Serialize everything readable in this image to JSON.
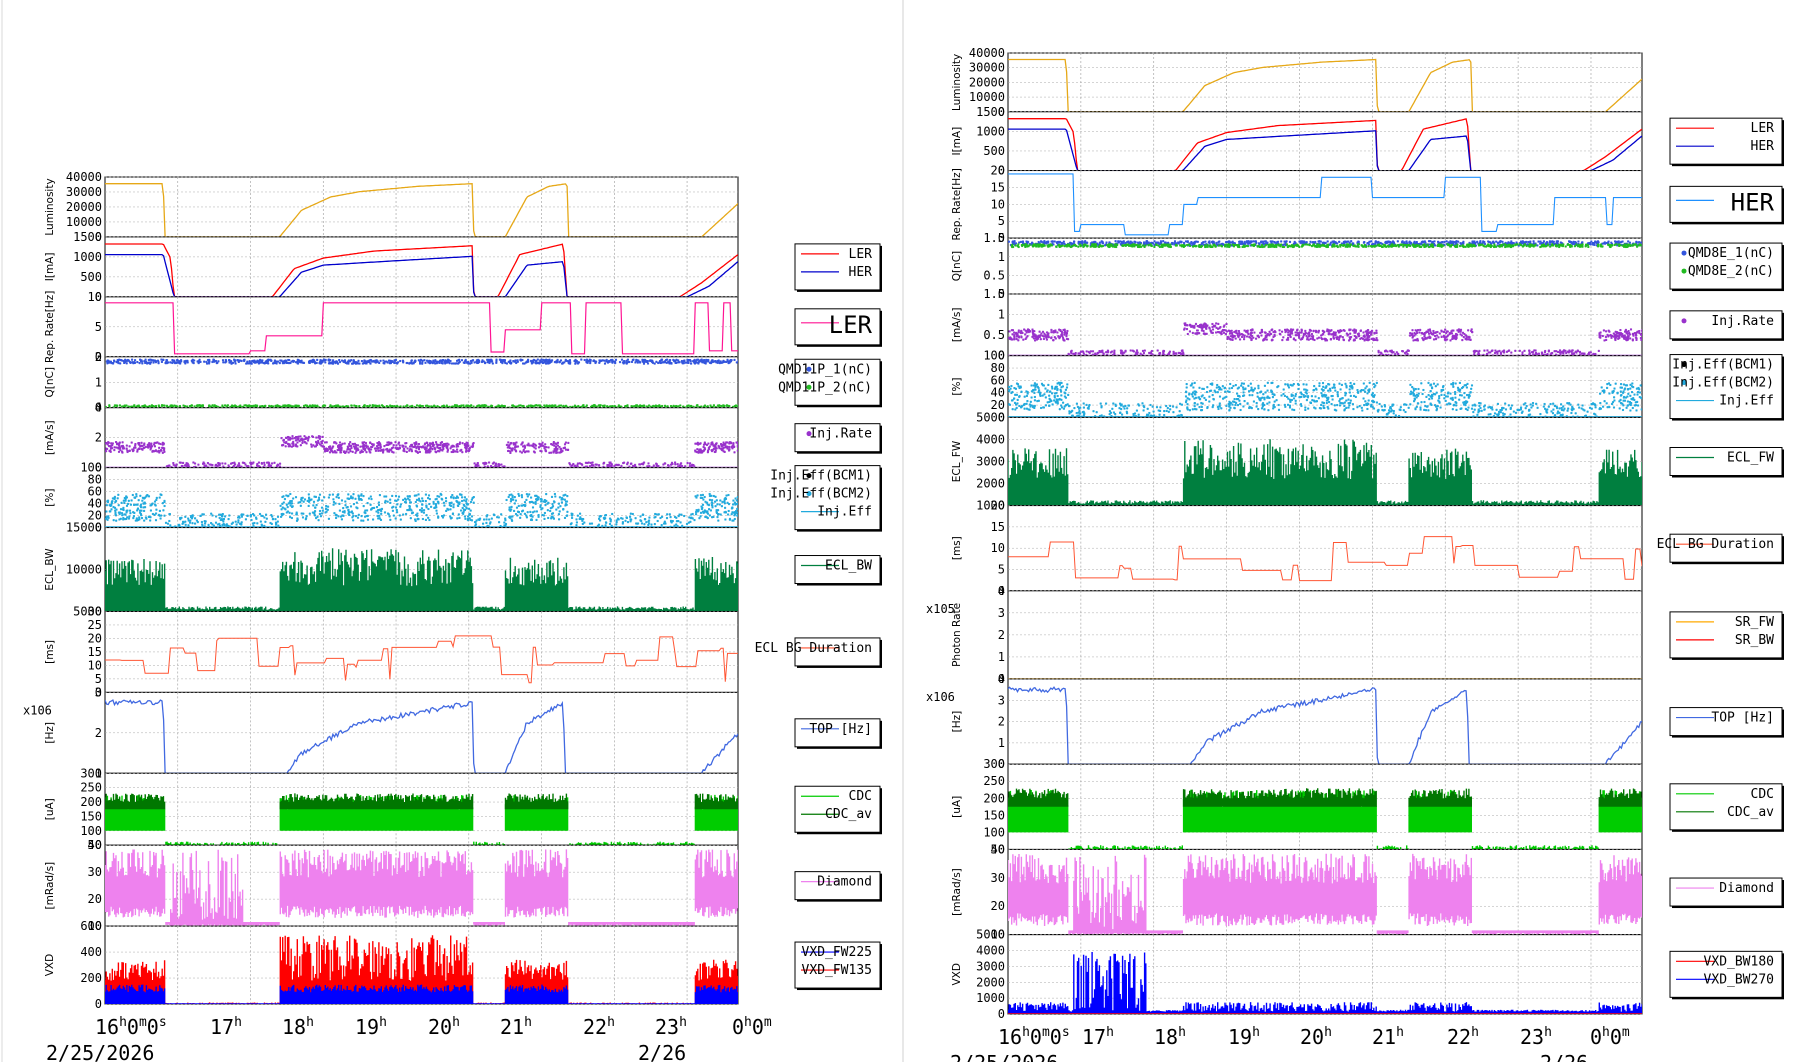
{
  "panels": [
    {
      "id": "left",
      "x_ticks": [
        "16h0m0s",
        "17h",
        "18h",
        "19h",
        "20h",
        "21h",
        "22h",
        "23h",
        "0h0m"
      ],
      "dates": [
        "2/25/2026",
        "2/26"
      ],
      "rows": [
        {
          "key": "lum",
          "ylabel": "Luminosity",
          "yticks": [
            "0",
            "10000",
            "20000",
            "30000",
            "40000"
          ],
          "legend": null
        },
        {
          "key": "cur",
          "ylabel": "I[mA]",
          "yticks": [
            "0",
            "500",
            "1000",
            "1500"
          ],
          "legend": {
            "items": [
              {
                "label": "LER",
                "color": "#ff0000",
                "kind": "line"
              },
              {
                "label": "HER",
                "color": "#0000cc",
                "kind": "line"
              }
            ]
          }
        },
        {
          "key": "rep",
          "ylabel": "Rep. Rate[Hz]",
          "yticks": [
            "0",
            "5",
            "10"
          ],
          "legend": {
            "items": [
              {
                "label": "LER",
                "color": "#ff1493",
                "kind": "line"
              }
            ],
            "large": true
          }
        },
        {
          "key": "q",
          "ylabel": "Q[nC]",
          "yticks": [
            "0",
            "1",
            "2"
          ],
          "legend": {
            "items": [
              {
                "label": "QMD11P_1(nC)",
                "color": "#3355dd",
                "kind": "dot"
              },
              {
                "label": "QMD11P_2(nC)",
                "color": "#22bb22",
                "kind": "dot"
              }
            ]
          }
        },
        {
          "key": "injrate",
          "ylabel": "[mA/s]",
          "yticks": [
            "0",
            "2",
            "4"
          ],
          "legend": {
            "items": [
              {
                "label": "Inj.Rate",
                "color": "#9932cc",
                "kind": "dot"
              }
            ]
          }
        },
        {
          "key": "eff",
          "ylabel": "[%]",
          "yticks": [
            "0",
            "20",
            "40",
            "60",
            "80",
            "100"
          ],
          "legend": {
            "items": [
              {
                "label": "Inj.Eff(BCM1)",
                "color": "#000000",
                "kind": "dot"
              },
              {
                "label": "Inj.Eff(BCM2)",
                "color": "#22aadd",
                "kind": "dot"
              },
              {
                "label": "Inj.Eff",
                "color": "#22aadd",
                "kind": "line"
              }
            ]
          }
        },
        {
          "key": "ecl",
          "ylabel": "ECL_BW",
          "yticks": [
            "5000",
            "10000",
            "15000"
          ],
          "legend": {
            "items": [
              {
                "label": "ECL_BW",
                "color": "#007f3f",
                "kind": "line"
              }
            ]
          }
        },
        {
          "key": "ecldur",
          "ylabel": "[ms]",
          "yticks": [
            "0",
            "5",
            "10",
            "15",
            "20",
            "25",
            "30"
          ],
          "legend": {
            "items": [
              {
                "label": "ECL BG Duration",
                "color": "#ff5533",
                "kind": "line"
              }
            ]
          }
        },
        {
          "key": "top",
          "ylabel": "[Hz]",
          "yticks": [
            "1",
            "2",
            "3"
          ],
          "exponent": "x10^6",
          "legend": {
            "items": [
              {
                "label": "TOP [Hz]",
                "color": "#4169e1",
                "kind": "line"
              }
            ]
          }
        },
        {
          "key": "cdc",
          "ylabel": "[uA]",
          "yticks": [
            "50",
            "100",
            "150",
            "200",
            "250",
            "300"
          ],
          "legend": {
            "items": [
              {
                "label": "CDC",
                "color": "#00cc00",
                "kind": "line"
              },
              {
                "label": "CDC_av",
                "color": "#007700",
                "kind": "line"
              }
            ]
          }
        },
        {
          "key": "dia",
          "ylabel": "[mRad/s]",
          "yticks": [
            "10",
            "20",
            "30",
            "40"
          ],
          "legend": {
            "items": [
              {
                "label": "Diamond",
                "color": "#ee82ee",
                "kind": "line"
              }
            ]
          }
        },
        {
          "key": "vxd",
          "ylabel": "VXD",
          "yticks": [
            "0",
            "200",
            "400",
            "600"
          ],
          "legend": {
            "items": [
              {
                "label": "VXD_FW225",
                "color": "#0000ff",
                "kind": "line"
              },
              {
                "label": "VXD_FW135",
                "color": "#ff0000",
                "kind": "line"
              }
            ]
          }
        }
      ]
    },
    {
      "id": "right",
      "x_ticks": [
        "16h0m0s",
        "17h",
        "18h",
        "19h",
        "20h",
        "21h",
        "22h",
        "23h",
        "0h0m"
      ],
      "dates": [
        "2/25/2026",
        "2/26"
      ],
      "rows": [
        {
          "key": "lum",
          "ylabel": "Luminosity",
          "yticks": [
            "0",
            "10000",
            "20000",
            "30000",
            "40000"
          ],
          "legend": null
        },
        {
          "key": "cur",
          "ylabel": "I[mA]",
          "yticks": [
            "0",
            "500",
            "1000",
            "1500"
          ],
          "legend": {
            "items": [
              {
                "label": "LER",
                "color": "#ff0000",
                "kind": "line"
              },
              {
                "label": "HER",
                "color": "#0000cc",
                "kind": "line"
              }
            ]
          }
        },
        {
          "key": "rep",
          "ylabel": "Rep. Rate[Hz]",
          "yticks": [
            "0",
            "5",
            "10",
            "15",
            "20"
          ],
          "legend": {
            "items": [
              {
                "label": "HER",
                "color": "#1e90ff",
                "kind": "line"
              }
            ],
            "large": true
          }
        },
        {
          "key": "q",
          "ylabel": "Q[nC]",
          "yticks": [
            "0",
            "0.5",
            "1",
            "1.5"
          ],
          "legend": {
            "items": [
              {
                "label": "QMD8E_1(nC)",
                "color": "#3355dd",
                "kind": "dot"
              },
              {
                "label": "QMD8E_2(nC)",
                "color": "#22bb22",
                "kind": "dot"
              }
            ]
          }
        },
        {
          "key": "injrate",
          "ylabel": "[mA/s]",
          "yticks": [
            "0",
            "0.5",
            "1",
            "1.5"
          ],
          "legend": {
            "items": [
              {
                "label": "Inj.Rate",
                "color": "#9932cc",
                "kind": "dot"
              }
            ]
          }
        },
        {
          "key": "eff",
          "ylabel": "[%]",
          "yticks": [
            "0",
            "20",
            "40",
            "60",
            "80",
            "100"
          ],
          "legend": {
            "items": [
              {
                "label": "Inj.Eff(BCM1)",
                "color": "#000000",
                "kind": "dot"
              },
              {
                "label": "Inj.Eff(BCM2)",
                "color": "#22aadd",
                "kind": "dot"
              },
              {
                "label": "Inj.Eff",
                "color": "#22aadd",
                "kind": "line"
              }
            ]
          }
        },
        {
          "key": "ecl",
          "ylabel": "ECL_FW",
          "yticks": [
            "1000",
            "2000",
            "3000",
            "4000",
            "5000"
          ],
          "legend": {
            "items": [
              {
                "label": "ECL_FW",
                "color": "#007f3f",
                "kind": "line"
              }
            ]
          }
        },
        {
          "key": "ecldur",
          "ylabel": "[ms]",
          "yticks": [
            "0",
            "5",
            "10",
            "15",
            "20"
          ],
          "legend": {
            "items": [
              {
                "label": "ECL BG Duration",
                "color": "#ff5533",
                "kind": "line"
              }
            ]
          }
        },
        {
          "key": "sr",
          "ylabel": "Photon Rate",
          "yticks": [
            "0",
            "1",
            "2",
            "3",
            "4"
          ],
          "exponent": "x10^5",
          "legend": {
            "items": [
              {
                "label": "SR_FW",
                "color": "#ffaa00",
                "kind": "line"
              },
              {
                "label": "SR_BW",
                "color": "#ff0000",
                "kind": "line"
              }
            ]
          }
        },
        {
          "key": "top",
          "ylabel": "[Hz]",
          "yticks": [
            "0",
            "1",
            "2",
            "3",
            "4"
          ],
          "exponent": "x10^6",
          "legend": {
            "items": [
              {
                "label": "TOP [Hz]",
                "color": "#4169e1",
                "kind": "line"
              }
            ]
          }
        },
        {
          "key": "cdc",
          "ylabel": "[uA]",
          "yticks": [
            "50",
            "100",
            "150",
            "200",
            "250",
            "300"
          ],
          "legend": {
            "items": [
              {
                "label": "CDC",
                "color": "#00cc00",
                "kind": "line"
              },
              {
                "label": "CDC_av",
                "color": "#007700",
                "kind": "line"
              }
            ]
          }
        },
        {
          "key": "dia",
          "ylabel": "[mRad/s]",
          "yticks": [
            "10",
            "20",
            "30",
            "40"
          ],
          "legend": {
            "items": [
              {
                "label": "Diamond",
                "color": "#ee82ee",
                "kind": "line"
              }
            ]
          }
        },
        {
          "key": "vxd",
          "ylabel": "VXD",
          "yticks": [
            "0",
            "1000",
            "2000",
            "3000",
            "4000",
            "5000"
          ],
          "legend": {
            "items": [
              {
                "label": "VXD_BW180",
                "color": "#ff0000",
                "kind": "line"
              },
              {
                "label": "VXD_BW270",
                "color": "#0000ff",
                "kind": "line"
              }
            ]
          }
        }
      ]
    }
  ],
  "chart_data": [
    {
      "type": "line",
      "x": "hours since 2/25/2026 16:00",
      "xlim": [
        0,
        8.7
      ],
      "series": [
        {
          "name": "Luminosity",
          "points": [
            [
              0,
              40000
            ],
            [
              0.8,
              40000
            ],
            [
              0.82,
              0
            ],
            [
              2.4,
              0
            ],
            [
              2.7,
              20000
            ],
            [
              3.1,
              30000
            ],
            [
              3.5,
              34000
            ],
            [
              4.3,
              38000
            ],
            [
              5.05,
              40000
            ],
            [
              5.07,
              0
            ],
            [
              5.5,
              0
            ],
            [
              5.8,
              30000
            ],
            [
              6.1,
              38000
            ],
            [
              6.35,
              40000
            ],
            [
              6.37,
              0
            ],
            [
              8.2,
              0
            ],
            [
              8.7,
              25000
            ]
          ]
        },
        {
          "name": "LER",
          "points": [
            [
              0,
              1500
            ],
            [
              0.8,
              1500
            ],
            [
              0.9,
              1100
            ],
            [
              0.95,
              0
            ],
            [
              2.3,
              0
            ],
            [
              2.6,
              800
            ],
            [
              3.0,
              1100
            ],
            [
              3.7,
              1300
            ],
            [
              5.05,
              1450
            ],
            [
              5.07,
              0
            ],
            [
              5.4,
              0
            ],
            [
              5.7,
              1200
            ],
            [
              6.3,
              1500
            ],
            [
              6.35,
              0
            ],
            [
              7.9,
              0
            ],
            [
              8.2,
              400
            ],
            [
              8.7,
              1200
            ]
          ]
        },
        {
          "name": "HER",
          "points": [
            [
              0,
              1200
            ],
            [
              0.8,
              1200
            ],
            [
              0.95,
              0
            ],
            [
              2.4,
              0
            ],
            [
              2.7,
              700
            ],
            [
              3.0,
              900
            ],
            [
              3.8,
              1000
            ],
            [
              5.05,
              1150
            ],
            [
              5.07,
              0
            ],
            [
              5.5,
              0
            ],
            [
              5.8,
              900
            ],
            [
              6.3,
              1000
            ],
            [
              6.35,
              0
            ],
            [
              8.0,
              0
            ],
            [
              8.3,
              300
            ],
            [
              8.7,
              1000
            ]
          ]
        },
        {
          "name": "TOP [Hz]",
          "points": [
            [
              0,
              3500000
            ],
            [
              0.8,
              3500000
            ],
            [
              0.82,
              0
            ],
            [
              2.5,
              0
            ],
            [
              2.7,
              1000000
            ],
            [
              3.5,
              2500000
            ],
            [
              4.3,
              3000000
            ],
            [
              5.05,
              3500000
            ],
            [
              5.07,
              0
            ],
            [
              5.5,
              0
            ],
            [
              5.8,
              2500000
            ],
            [
              6.3,
              3500000
            ],
            [
              6.32,
              0
            ],
            [
              8.2,
              0
            ],
            [
              8.7,
              2000000
            ]
          ]
        }
      ]
    }
  ]
}
